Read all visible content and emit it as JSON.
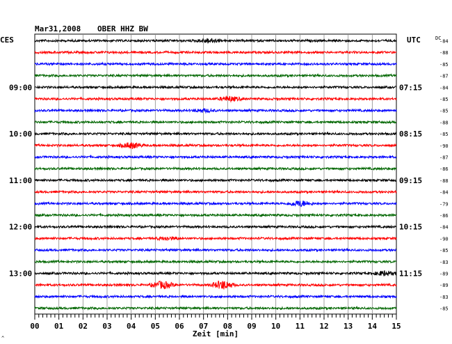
{
  "header": {
    "date": "Mar31,2008",
    "station": "OBER HHZ BW"
  },
  "left_zone_label": "CES",
  "right_zone_label": "UTC",
  "dc_header": "DC",
  "x_axis": {
    "label": "Zeit [min]",
    "ticks": [
      "00",
      "01",
      "02",
      "03",
      "04",
      "05",
      "06",
      "07",
      "08",
      "09",
      "10",
      "11",
      "12",
      "13",
      "14",
      "15"
    ]
  },
  "left_hour_labels": [
    {
      "row": 4,
      "text": "09:00"
    },
    {
      "row": 8,
      "text": "10:00"
    },
    {
      "row": 12,
      "text": "11:00"
    },
    {
      "row": 16,
      "text": "12:00"
    },
    {
      "row": 20,
      "text": "13:00"
    }
  ],
  "right_hour_labels": [
    {
      "row": 4,
      "text": "07:15"
    },
    {
      "row": 8,
      "text": "08:15"
    },
    {
      "row": 12,
      "text": "09:15"
    },
    {
      "row": 16,
      "text": "10:15"
    },
    {
      "row": 20,
      "text": "11:15"
    }
  ],
  "dc_offsets": [
    "-84",
    "-88",
    "-85",
    "-87",
    "-84",
    "-85",
    "-85",
    "-88",
    "-85",
    "-90",
    "-87",
    "-86",
    "-88",
    "-84",
    "-79",
    "-86",
    "-84",
    "-90",
    "-85",
    "-83",
    "-89",
    "-89",
    "-83",
    "-85"
  ],
  "trace_colors": [
    "#000000",
    "#ff0000",
    "#0000ff",
    "#006600"
  ],
  "events": [
    {
      "row": 0,
      "minute": 7.2,
      "amp": 3
    },
    {
      "row": 5,
      "minute": 8.1,
      "amp": 3
    },
    {
      "row": 6,
      "minute": 7.0,
      "amp": 2
    },
    {
      "row": 9,
      "minute": 4.0,
      "amp": 4
    },
    {
      "row": 14,
      "minute": 11.0,
      "amp": 4
    },
    {
      "row": 17,
      "minute": 5.5,
      "amp": 2
    },
    {
      "row": 21,
      "minute": 5.3,
      "amp": 5
    },
    {
      "row": 21,
      "minute": 7.8,
      "amp": 6
    },
    {
      "row": 20,
      "minute": 14.5,
      "amp": 3
    }
  ],
  "footnote_mark": "^"
}
